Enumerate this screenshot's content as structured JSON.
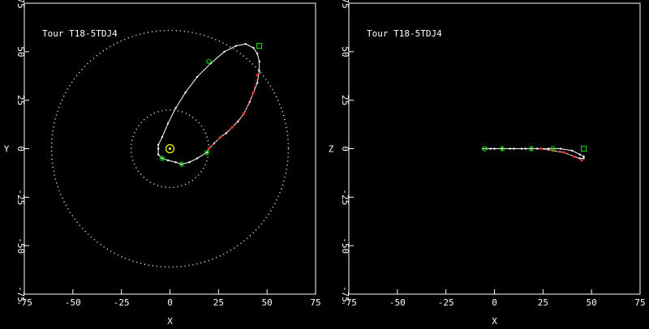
{
  "chart_data": [
    {
      "type": "scatter",
      "panel": "xy",
      "title": "Tour T18-5TDJ4",
      "xlabel": "X",
      "ylabel": "Y",
      "xlim": [
        -75,
        75
      ],
      "ylim": [
        -75,
        75
      ],
      "xticks": [
        "-75",
        "-50",
        "-25",
        "0",
        "25",
        "50",
        "75"
      ],
      "yticks": [
        "75",
        "50",
        "25",
        "0",
        "-25",
        "-50",
        "-75"
      ],
      "grid": false,
      "colors": {
        "background": "#000000",
        "axes": "#ffffff",
        "trajectory": "#ffffff",
        "flyby": "#00cc00",
        "segment": "#ff2222",
        "orbit": "#ffffff",
        "sun": "#ffff00"
      },
      "reference_orbits": [
        {
          "name": "outer-orbit",
          "radius": 61
        },
        {
          "name": "inner-orbit",
          "radius": 20
        }
      ],
      "central_body": {
        "x": 0,
        "y": 0
      },
      "trajectory": [
        [
          -6,
          0
        ],
        [
          -6,
          -3
        ],
        [
          -4,
          -5
        ],
        [
          -1,
          -6
        ],
        [
          3,
          -7
        ],
        [
          6,
          -8
        ],
        [
          10,
          -7
        ],
        [
          14,
          -5
        ],
        [
          19,
          -2
        ],
        [
          20,
          0
        ],
        [
          23,
          3
        ],
        [
          26,
          6
        ],
        [
          29,
          8
        ],
        [
          32,
          11
        ],
        [
          35,
          14
        ],
        [
          38,
          18
        ],
        [
          41,
          24
        ],
        [
          43,
          29
        ],
        [
          45,
          34
        ],
        [
          46,
          40
        ],
        [
          46,
          45
        ],
        [
          45,
          49
        ],
        [
          43,
          52
        ],
        [
          39,
          54
        ],
        [
          34,
          53
        ],
        [
          28,
          50
        ],
        [
          21,
          44
        ],
        [
          14,
          37
        ],
        [
          8,
          29
        ],
        [
          3,
          21
        ],
        [
          -1,
          13
        ],
        [
          -4,
          6
        ],
        [
          -6,
          2
        ],
        [
          -6,
          0
        ]
      ],
      "flyby_markers": [
        [
          46,
          53
        ],
        [
          19,
          -2
        ],
        [
          6,
          -8
        ],
        [
          -4,
          -5
        ],
        [
          20,
          45
        ]
      ],
      "red_segment": [
        [
          20,
          0
        ],
        [
          26,
          6
        ],
        [
          32,
          11
        ],
        [
          38,
          18
        ],
        [
          43,
          29
        ],
        [
          45,
          38
        ]
      ]
    },
    {
      "type": "scatter",
      "panel": "xz",
      "title": "Tour T18-5TDJ4",
      "xlabel": "X",
      "ylabel": "Z",
      "xlim": [
        -75,
        75
      ],
      "ylim": [
        -75,
        75
      ],
      "xticks": [
        "-75",
        "-50",
        "-25",
        "0",
        "25",
        "50",
        "75"
      ],
      "yticks": [
        "75",
        "50",
        "25",
        "0",
        "-25",
        "-50",
        "-75"
      ],
      "grid": false,
      "trajectory": [
        [
          -6,
          0
        ],
        [
          -4,
          0
        ],
        [
          0,
          0
        ],
        [
          4,
          0
        ],
        [
          8,
          0
        ],
        [
          14,
          0
        ],
        [
          19,
          0
        ],
        [
          24,
          0
        ],
        [
          30,
          -1
        ],
        [
          36,
          -2
        ],
        [
          41,
          -4
        ],
        [
          44,
          -5
        ],
        [
          46,
          -5
        ],
        [
          46,
          -4
        ],
        [
          44,
          -3
        ],
        [
          40,
          -1
        ],
        [
          34,
          0
        ],
        [
          28,
          0
        ],
        [
          22,
          0
        ],
        [
          16,
          0
        ],
        [
          10,
          0
        ],
        [
          4,
          0
        ],
        [
          -2,
          0
        ],
        [
          -6,
          0
        ]
      ],
      "flyby_markers": [
        [
          46,
          0
        ],
        [
          19,
          0
        ],
        [
          4,
          0
        ],
        [
          -5,
          0
        ],
        [
          30,
          0
        ]
      ],
      "red_segment": [
        [
          24,
          0
        ],
        [
          30,
          -1
        ],
        [
          36,
          -2
        ],
        [
          41,
          -4
        ],
        [
          45,
          -6
        ]
      ]
    }
  ]
}
